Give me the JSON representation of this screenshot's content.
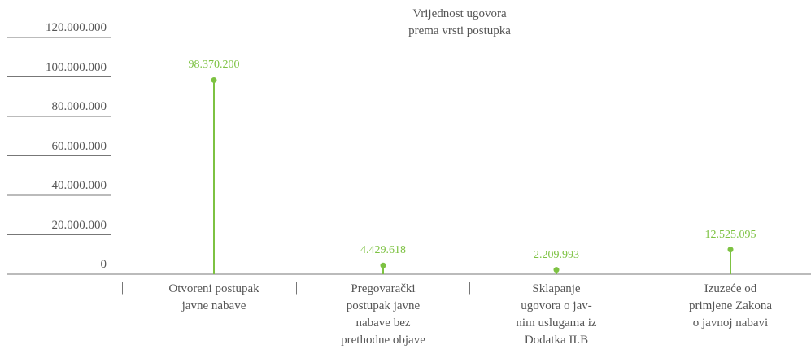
{
  "chart_data": {
    "type": "lollipop",
    "title": "Vrijednost ugovora\nprema vrsti postupka",
    "categories": [
      "Otvoreni postupak\njavne nabave",
      "Pregovarački\npostupak javne\nnabave bez\nprethodne objave",
      "Sklapanje\nugovora o jav-\nnim uslugama iz\nDodatka II.B",
      "Izuzeće od\nprimjene Zakona\no javnoj nabavi"
    ],
    "values": [
      98370200,
      4429618,
      2209993,
      12525095
    ],
    "value_labels": [
      "98.370.200",
      "4.429.618",
      "2.209.993",
      "12.525.095"
    ],
    "color": "#7dc242",
    "ylim": [
      0,
      120000000
    ],
    "yticks": [
      0,
      {
        "value": 20000000,
        "label": "20.000.000"
      },
      {
        "value": 40000000,
        "label": "40.000.000"
      },
      {
        "value": 60000000,
        "label": "60.000.000"
      },
      {
        "value": 80000000,
        "label": "80.000.000"
      },
      {
        "value": 100000000,
        "label": "100.000.000"
      },
      {
        "value": 120000000,
        "label": "120.000.000"
      }
    ],
    "grid": true
  }
}
